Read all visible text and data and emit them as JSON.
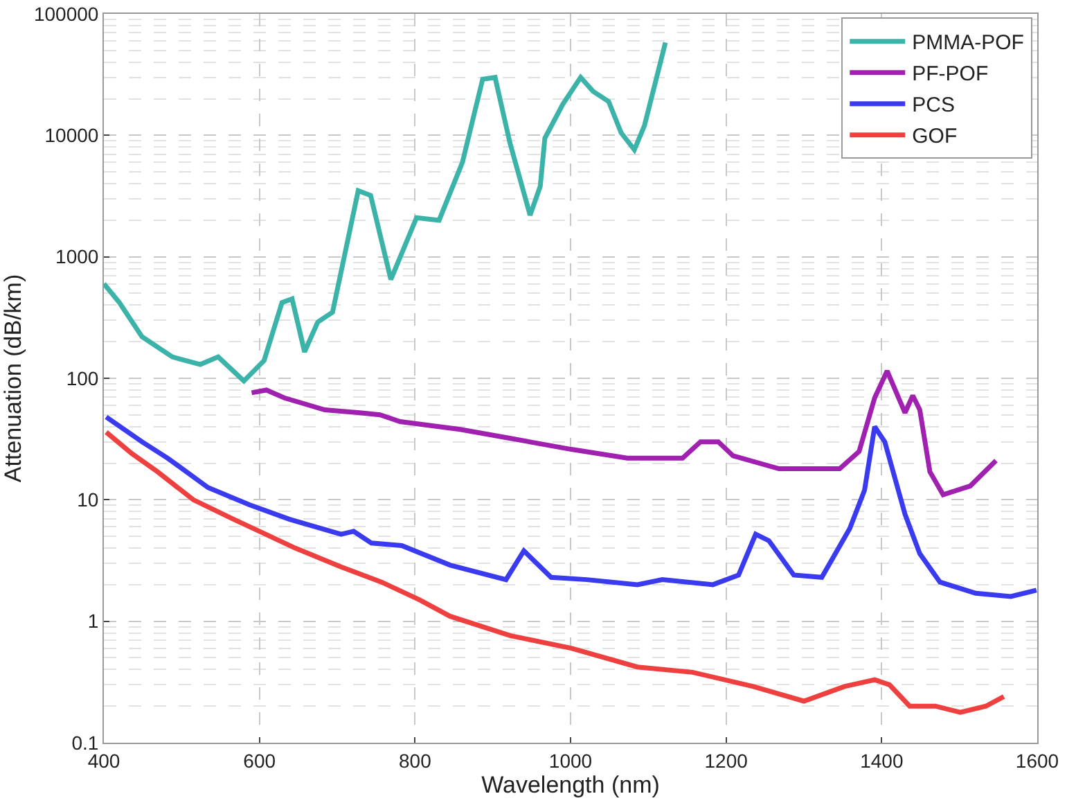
{
  "chart_data": {
    "type": "line",
    "xlabel": "Wavelength (nm)",
    "ylabel": "Attenuation (dB/km)",
    "log": "y",
    "grid": true,
    "legend": "top right",
    "line_style": "solid",
    "marker": "none",
    "xlim": [
      400,
      1600
    ],
    "xticks": [
      400,
      600,
      800,
      1000,
      1200,
      1400,
      1600
    ],
    "ylim": [
      0.1,
      100000
    ],
    "yticks": [
      0.1,
      1,
      10,
      100,
      1000,
      10000,
      100000
    ],
    "series": [
      {
        "name": "PMMA-POF",
        "color": "#3cb3a8",
        "x": [
          400,
          420,
          449,
          488,
          524,
          547,
          580,
          606,
          629,
          642,
          658,
          675,
          694,
          727,
          743,
          769,
          802,
          831,
          861,
          887,
          903,
          922,
          948,
          961,
          967,
          990,
          1013,
          1029,
          1049,
          1065,
          1082,
          1095,
          1122
        ],
        "values": [
          600,
          420,
          220,
          150,
          130,
          150,
          95,
          140,
          420,
          450,
          165,
          290,
          350,
          3500,
          3200,
          650,
          2100,
          2000,
          6000,
          29000,
          30000,
          8700,
          2200,
          3800,
          9500,
          18000,
          30000,
          23000,
          19000,
          10500,
          7600,
          12000,
          58000
        ]
      },
      {
        "name": "PF-POF",
        "color": "#a020b0",
        "x": [
          590,
          609,
          632,
          684,
          729,
          755,
          781,
          858,
          923,
          1001,
          1073,
          1144,
          1167,
          1190,
          1209,
          1268,
          1346,
          1371,
          1391,
          1407,
          1430,
          1440,
          1449,
          1462,
          1479,
          1514,
          1547
        ],
        "values": [
          76,
          80,
          69,
          55,
          52,
          50,
          44,
          38,
          32,
          26,
          22,
          22,
          30,
          30,
          23,
          18,
          18,
          25,
          69,
          115,
          52,
          72,
          55,
          17,
          11,
          13,
          21
        ]
      },
      {
        "name": "PCS",
        "color": "#3a3aef",
        "x": [
          403,
          449,
          482,
          534,
          587,
          639,
          705,
          721,
          744,
          783,
          845,
          917,
          940,
          975,
          1021,
          1086,
          1118,
          1183,
          1216,
          1238,
          1255,
          1287,
          1323,
          1359,
          1378,
          1391,
          1404,
          1430,
          1449,
          1475,
          1521,
          1566,
          1599
        ],
        "values": [
          48,
          30,
          22,
          12.6,
          9.1,
          6.9,
          5.2,
          5.5,
          4.4,
          4.2,
          2.9,
          2.2,
          3.8,
          2.3,
          2.2,
          2.0,
          2.2,
          2.0,
          2.4,
          5.2,
          4.6,
          2.4,
          2.3,
          5.8,
          12,
          40,
          30,
          7.6,
          3.6,
          2.1,
          1.7,
          1.6,
          1.8
        ]
      },
      {
        "name": "GOF",
        "color": "#ef4040",
        "x": [
          403,
          436,
          469,
          515,
          567,
          600,
          646,
          705,
          757,
          806,
          845,
          923,
          1001,
          1086,
          1157,
          1235,
          1300,
          1352,
          1391,
          1410,
          1436,
          1469,
          1501,
          1534,
          1557
        ],
        "values": [
          36,
          24,
          17,
          10,
          6.9,
          5.5,
          4.0,
          2.8,
          2.1,
          1.5,
          1.1,
          0.76,
          0.6,
          0.42,
          0.38,
          0.29,
          0.22,
          0.29,
          0.33,
          0.3,
          0.2,
          0.2,
          0.178,
          0.2,
          0.24
        ]
      }
    ]
  }
}
